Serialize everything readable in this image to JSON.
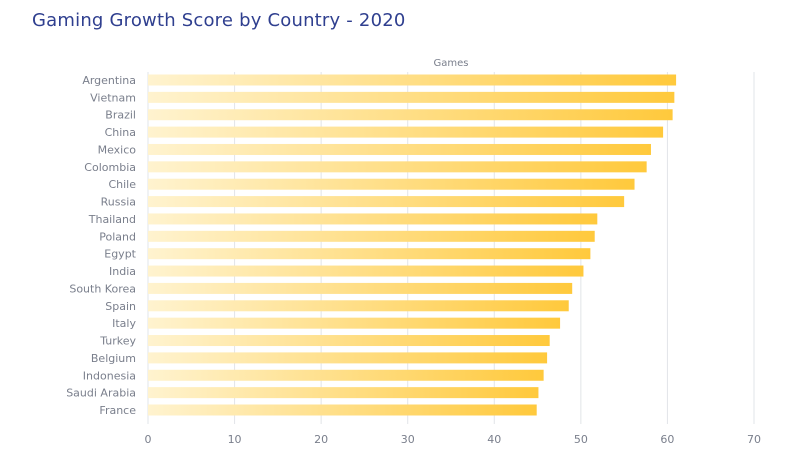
{
  "title": "Gaming Growth Score by Country - 2020",
  "colors": {
    "title": "#2f3f8f",
    "bar_start": "#fff3cf",
    "bar_end": "#ffc93c",
    "grid": "#e2e4e8",
    "label": "#7a7f8c"
  },
  "chart_data": {
    "type": "bar",
    "orientation": "horizontal",
    "title": "Gaming Growth Score by Country - 2020",
    "xlabel": "Games",
    "ylabel": "",
    "xlim": [
      0,
      70
    ],
    "x_ticks": [
      0,
      10,
      20,
      30,
      40,
      50,
      60,
      70
    ],
    "grid": true,
    "legend": "none",
    "categories": [
      "Argentina",
      "Vietnam",
      "Brazil",
      "China",
      "Mexico",
      "Colombia",
      "Chile",
      "Russia",
      "Thailand",
      "Poland",
      "Egypt",
      "India",
      "South Korea",
      "Spain",
      "Italy",
      "Turkey",
      "Belgium",
      "Indonesia",
      "Saudi Arabia",
      "France"
    ],
    "values": [
      61.0,
      60.8,
      60.6,
      59.5,
      58.1,
      57.6,
      56.2,
      55.0,
      51.9,
      51.6,
      51.1,
      50.3,
      49.0,
      48.6,
      47.6,
      46.4,
      46.1,
      45.7,
      45.1,
      44.9
    ]
  }
}
